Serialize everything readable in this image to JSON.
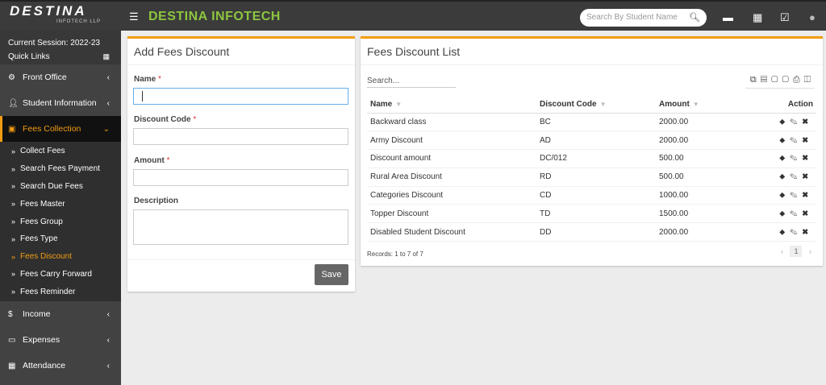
{
  "header": {
    "logo_text": "DESTINA",
    "logo_sub": "INFOTECH LLP",
    "brand": "DESTINA INFOTECH",
    "search_placeholder": "Search By Student Name"
  },
  "sidebar": {
    "session": "Current Session: 2022-23",
    "quick_links": "Quick Links",
    "items": [
      {
        "label": "Front Office"
      },
      {
        "label": "Student Information"
      },
      {
        "label": "Fees Collection"
      },
      {
        "label": "Income"
      },
      {
        "label": "Expenses"
      },
      {
        "label": "Attendance"
      }
    ],
    "sub_items": [
      {
        "label": "Collect Fees"
      },
      {
        "label": "Search Fees Payment"
      },
      {
        "label": "Search Due Fees"
      },
      {
        "label": "Fees Master"
      },
      {
        "label": "Fees Group"
      },
      {
        "label": "Fees Type"
      },
      {
        "label": "Fees Discount"
      },
      {
        "label": "Fees Carry Forward"
      },
      {
        "label": "Fees Reminder"
      }
    ]
  },
  "form": {
    "title": "Add Fees Discount",
    "name_label": "Name",
    "code_label": "Discount Code",
    "amount_label": "Amount",
    "desc_label": "Description",
    "required": "*",
    "save": "Save"
  },
  "list": {
    "title": "Fees Discount List",
    "search_placeholder": "Search...",
    "columns": [
      "Name",
      "Discount Code",
      "Amount",
      "Action"
    ],
    "rows": [
      [
        "Backward class",
        "BC",
        "2000.00"
      ],
      [
        "Army Discount",
        "AD",
        "2000.00"
      ],
      [
        "Discount amount",
        "DC/012",
        "500.00"
      ],
      [
        "Rural Area Discount",
        "RD",
        "500.00"
      ],
      [
        "Categories Discount",
        "CD",
        "1000.00"
      ],
      [
        "Topper Discount",
        "TD",
        "1500.00"
      ],
      [
        "Disabled Student Discount",
        "DD",
        "2000.00"
      ]
    ],
    "records": "Records: 1 to 7 of 7",
    "page": "1"
  },
  "colors": {
    "accent": "#f39c12",
    "brand": "#8dc63f"
  }
}
